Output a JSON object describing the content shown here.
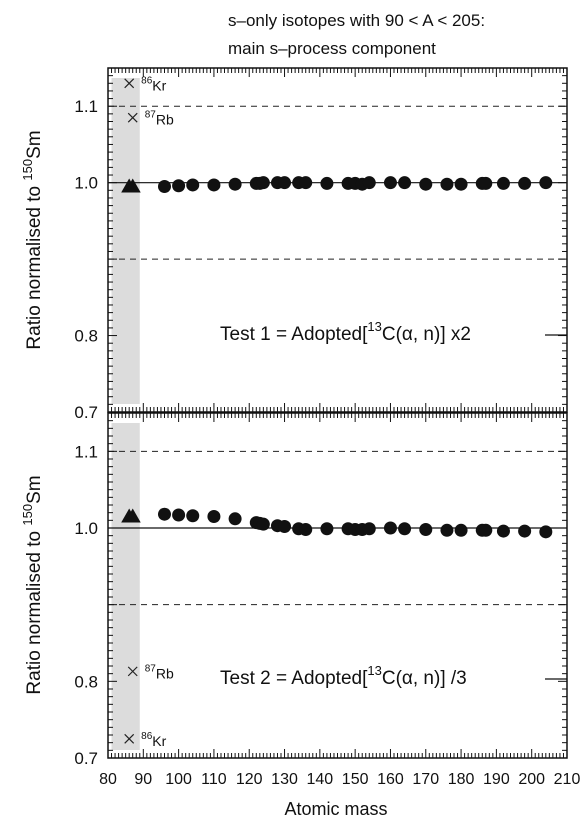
{
  "title_lines": [
    "s–only isotopes with 90 < A < 205:",
    "main s–process component"
  ],
  "xlabel": "Atomic mass",
  "x_ticks": [
    "80",
    "90",
    "100",
    "110",
    "120",
    "130",
    "140",
    "150",
    "160",
    "170",
    "180",
    "190",
    "200",
    "210"
  ],
  "y_ticks": [
    "0.7",
    "0.8",
    "1.0",
    "1.1"
  ],
  "ylabel_text": "Ratio normalised to ",
  "ylabel_sup": "150",
  "ylabel_tail": "Sm",
  "chart_data": [
    {
      "type": "scatter",
      "panel": "top",
      "annotation": {
        "pre": "Test 1 = Adopted[",
        "sup": "13",
        "post": "C(α, n)] x2"
      },
      "xlim": [
        80,
        210
      ],
      "ylim": [
        0.7,
        1.15
      ],
      "reference_line": 1.0,
      "dashed_lines": [
        1.1,
        0.9
      ],
      "shaded_band": [
        81,
        89
      ],
      "markers": {
        "circles": [
          [
            96,
            0.995
          ],
          [
            100,
            0.996
          ],
          [
            104,
            0.997
          ],
          [
            110,
            0.997
          ],
          [
            116,
            0.998
          ],
          [
            122,
            0.999
          ],
          [
            123,
            0.999
          ],
          [
            124,
            1.0
          ],
          [
            128,
            1.0
          ],
          [
            130,
            1.0
          ],
          [
            134,
            1.0
          ],
          [
            136,
            1.0
          ],
          [
            142,
            0.999
          ],
          [
            148,
            0.999
          ],
          [
            150,
            0.999
          ],
          [
            152,
            0.998
          ],
          [
            154,
            1.0
          ],
          [
            160,
            1.0
          ],
          [
            164,
            1.0
          ],
          [
            170,
            0.998
          ],
          [
            176,
            0.998
          ],
          [
            180,
            0.998
          ],
          [
            186,
            0.999
          ],
          [
            187,
            0.999
          ],
          [
            192,
            0.999
          ],
          [
            198,
            0.999
          ],
          [
            204,
            1.0
          ]
        ],
        "triangles": [
          [
            86,
            0.995
          ],
          [
            87,
            0.995
          ]
        ],
        "crosses": [
          {
            "x": 86,
            "y": 1.13,
            "label_sup": "86",
            "label": "Kr"
          },
          {
            "x": 87,
            "y": 1.085,
            "label_sup": "87",
            "label": "Rb"
          }
        ]
      }
    },
    {
      "type": "scatter",
      "panel": "bottom",
      "annotation": {
        "pre": "Test 2 = Adopted[",
        "sup": "13",
        "post": "C(α, n)] /3"
      },
      "xlim": [
        80,
        210
      ],
      "ylim": [
        0.7,
        1.15
      ],
      "reference_line": 1.0,
      "dashed_lines": [
        1.1,
        0.9
      ],
      "shaded_band": [
        81,
        89
      ],
      "markers": {
        "circles": [
          [
            96,
            1.018
          ],
          [
            100,
            1.017
          ],
          [
            104,
            1.016
          ],
          [
            110,
            1.015
          ],
          [
            116,
            1.012
          ],
          [
            122,
            1.007
          ],
          [
            123,
            1.006
          ],
          [
            124,
            1.005
          ],
          [
            128,
            1.003
          ],
          [
            130,
            1.002
          ],
          [
            134,
            0.999
          ],
          [
            136,
            0.998
          ],
          [
            142,
            0.999
          ],
          [
            148,
            0.999
          ],
          [
            150,
            0.998
          ],
          [
            152,
            0.998
          ],
          [
            154,
            0.999
          ],
          [
            160,
            1.0
          ],
          [
            164,
            0.999
          ],
          [
            170,
            0.998
          ],
          [
            176,
            0.997
          ],
          [
            180,
            0.997
          ],
          [
            186,
            0.997
          ],
          [
            187,
            0.997
          ],
          [
            192,
            0.996
          ],
          [
            198,
            0.996
          ],
          [
            204,
            0.995
          ]
        ],
        "triangles": [
          [
            86,
            1.015
          ],
          [
            87,
            1.015
          ]
        ],
        "crosses": [
          {
            "x": 86,
            "y": 0.725,
            "label_sup": "86",
            "label": "Kr"
          },
          {
            "x": 87,
            "y": 0.813,
            "label_sup": "87",
            "label": "Rb"
          }
        ]
      }
    }
  ]
}
